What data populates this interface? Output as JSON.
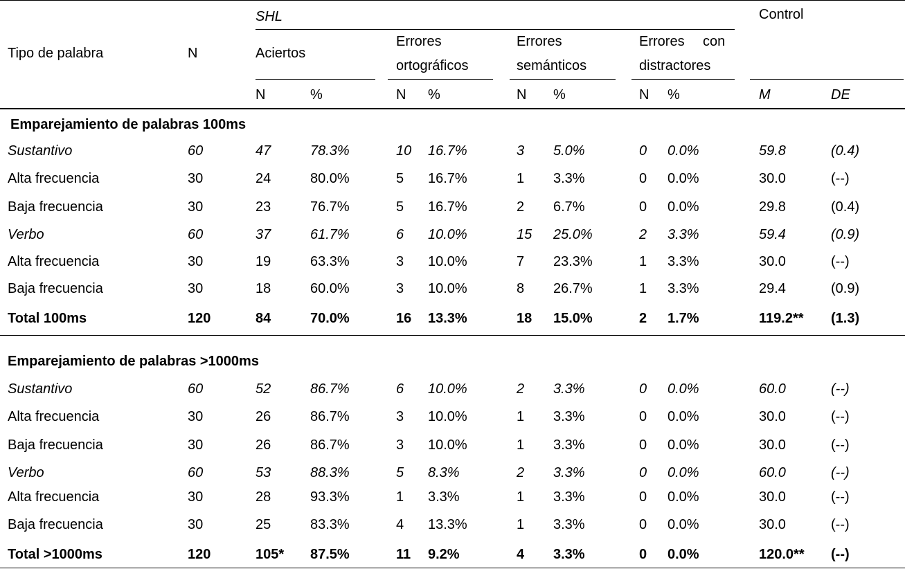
{
  "header": {
    "tipo": "Tipo de palabra",
    "n": "N",
    "shl": "SHL",
    "control": "Control",
    "aciertos": "Aciertos",
    "err_ort_1": "Errores",
    "err_ort_2": "ortográficos",
    "err_sem_1": "Errores",
    "err_sem_2": "semánticos",
    "err_dis_1": "Errores",
    "err_dis_1b": "con",
    "err_dis_2": "distractores",
    "sub_n": "N",
    "sub_pct": "%",
    "sub_m": "M",
    "sub_de": "DE"
  },
  "sections": [
    {
      "title": "Emparejamiento de palabras 100ms",
      "rows": [
        {
          "style": "italic",
          "cells": [
            "Sustantivo",
            "60",
            "47",
            "78.3%",
            "10",
            "16.7%",
            "3",
            "5.0%",
            "0",
            "0.0%",
            "59.8",
            "(0.4)"
          ]
        },
        {
          "style": "normal",
          "cells": [
            "Alta frecuencia",
            "30",
            "24",
            "80.0%",
            "5",
            "16.7%",
            "1",
            "3.3%",
            "0",
            "0.0%",
            "30.0",
            "(--)"
          ]
        },
        {
          "style": "normal",
          "cells": [
            "Baja frecuencia",
            "30",
            "23",
            "76.7%",
            "5",
            "16.7%",
            "2",
            "6.7%",
            "0",
            "0.0%",
            "29.8",
            "(0.4)"
          ]
        },
        {
          "style": "italic",
          "cells": [
            "Verbo",
            "60",
            "37",
            "61.7%",
            "6",
            "10.0%",
            "15",
            "25.0%",
            "2",
            "3.3%",
            "59.4",
            "(0.9)"
          ]
        },
        {
          "style": "normal",
          "cells": [
            "Alta frecuencia",
            "30",
            "19",
            "63.3%",
            "3",
            "10.0%",
            "7",
            "23.3%",
            "1",
            "3.3%",
            "30.0",
            "(--)"
          ]
        },
        {
          "style": "normal",
          "cells": [
            "Baja frecuencia",
            "30",
            "18",
            "60.0%",
            "3",
            "10.0%",
            "8",
            "26.7%",
            "1",
            "3.3%",
            "29.4",
            "(0.9)"
          ]
        },
        {
          "style": "bold",
          "cells": [
            "Total 100ms",
            "120",
            "84",
            "70.0%",
            "16",
            "13.3%",
            "18",
            "15.0%",
            "2",
            "1.7%",
            "119.2**",
            "(1.3)"
          ]
        }
      ]
    },
    {
      "title": "Emparejamiento de palabras >1000ms",
      "rows": [
        {
          "style": "italic",
          "cells": [
            "Sustantivo",
            "60",
            "52",
            "86.7%",
            "6",
            "10.0%",
            "2",
            "3.3%",
            "0",
            "0.0%",
            "60.0",
            "(--)"
          ]
        },
        {
          "style": "normal",
          "cells": [
            "Alta frecuencia",
            "30",
            "26",
            "86.7%",
            "3",
            "10.0%",
            "1",
            "3.3%",
            "0",
            "0.0%",
            "30.0",
            "(--)"
          ]
        },
        {
          "style": "normal",
          "cells": [
            "Baja frecuencia",
            "30",
            "26",
            "86.7%",
            "3",
            "10.0%",
            "1",
            "3.3%",
            "0",
            "0.0%",
            "30.0",
            "(--)"
          ]
        },
        {
          "style": "italic",
          "cells": [
            "Verbo",
            "60",
            "53",
            "88.3%",
            "5",
            "8.3%",
            "2",
            "3.3%",
            "0",
            "0.0%",
            "60.0",
            "(--)"
          ]
        },
        {
          "style": "normal",
          "cells": [
            "Alta frecuencia",
            "30",
            "28",
            "93.3%",
            "1",
            "3.3%",
            "1",
            "3.3%",
            "0",
            "0.0%",
            "30.0",
            "(--)"
          ]
        },
        {
          "style": "normal",
          "cells": [
            "Baja frecuencia",
            "30",
            "25",
            "83.3%",
            "4",
            "13.3%",
            "1",
            "3.3%",
            "0",
            "0.0%",
            "30.0",
            "(--)"
          ]
        },
        {
          "style": "bold",
          "cells": [
            "Total >1000ms",
            "120",
            "105*",
            "87.5%",
            "11",
            "9.2%",
            "4",
            "3.3%",
            "0",
            "0.0%",
            "120.0**",
            "(--)"
          ]
        }
      ]
    }
  ]
}
